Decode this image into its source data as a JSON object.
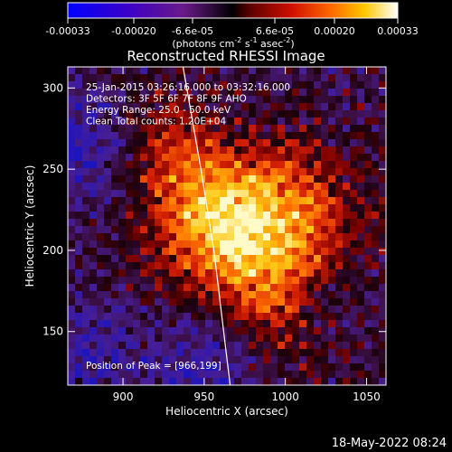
{
  "colorbar": {
    "ticks": [
      "-0.00033",
      "-0.00020",
      "-6.6e-05",
      "6.6e-05",
      "0.00020",
      "0.00033"
    ],
    "units_main": "(photons cm",
    "units_exp1": "-2",
    "units_mid": " s",
    "units_exp2": "-1",
    "units_mid2": " asec",
    "units_exp3": "-2",
    "units_end": ")",
    "min": -0.00033,
    "max": 0.00033
  },
  "chart_data": {
    "type": "heatmap",
    "title": "Reconstructed RHESSI Image",
    "xlabel": "Heliocentric X (arcsec)",
    "ylabel": "Heliocentric Y (arcsec)",
    "xlim": [
      866,
      1062
    ],
    "ylim": [
      117,
      313
    ],
    "x_ticks": [
      "900",
      "950",
      "1000",
      "1050"
    ],
    "y_ticks": [
      "150",
      "200",
      "250",
      "300"
    ],
    "x_tick_values": [
      900,
      950,
      1000,
      1050
    ],
    "y_tick_values": [
      150,
      200,
      250,
      300
    ],
    "colormap": "hot (blue-purple-red-orange-yellow-white)",
    "limb_line": [
      [
        937,
        313
      ],
      [
        948,
        250
      ],
      [
        956,
        200
      ],
      [
        962,
        150
      ],
      [
        966,
        117
      ]
    ],
    "peak": [
      966,
      199
    ],
    "annotations": [
      "25-Jan-2015 03:26:16.000 to 03:32:16.000",
      "Detectors: 3F 5F 6F 7F 8F 9F AHO",
      "Energy Range: 25.0 - 50.0 keV",
      "Clean    Total counts: 1.20E+04"
    ],
    "peak_label": "Position of Peak = [966,199]"
  },
  "footer": {
    "date": "18-May-2022 08:24"
  },
  "colors": {
    "background": "#000000",
    "text": "#ffffff"
  }
}
